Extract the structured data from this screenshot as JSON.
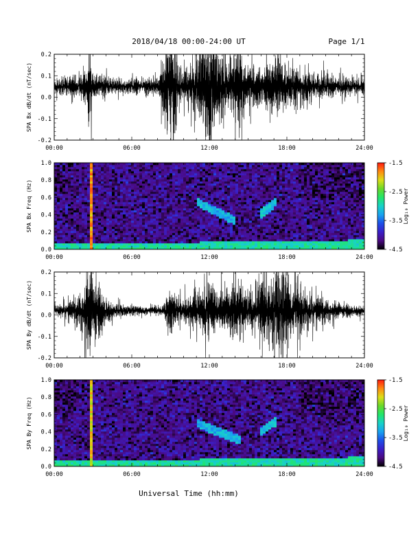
{
  "header": {
    "title": "2018/04/18   00:00-24:00 UT",
    "page": "Page 1/1"
  },
  "colors": {
    "waveform": "#000000",
    "colormap": [
      "#000000",
      "#4b0a82",
      "#3a1fc8",
      "#1d4fe8",
      "#19a2f0",
      "#18d2c8",
      "#22e66a",
      "#6ad82a",
      "#dcde18",
      "#ff8a10",
      "#ff1a10"
    ]
  },
  "chart_data": [
    {
      "type": "line",
      "name": "bx-waveform",
      "ylabel": "SPA Bx dB/dt (nT/sec)",
      "xlabel": "",
      "xlim": [
        0,
        24
      ],
      "ylim": [
        -0.2,
        0.2
      ],
      "xticks": [
        "00:00",
        "06:00",
        "12:00",
        "18:00",
        "24:00"
      ],
      "yticks": [
        "-0.2",
        "-0.1",
        "0.0",
        "0.1",
        "0.2"
      ],
      "baseline": 0.05,
      "envelope": [
        {
          "hour": 0.0,
          "amp": 0.03
        },
        {
          "hour": 1.5,
          "amp": 0.04
        },
        {
          "hour": 2.5,
          "amp": 0.06
        },
        {
          "hour": 2.75,
          "amp": 0.2
        },
        {
          "hour": 3.0,
          "amp": 0.05
        },
        {
          "hour": 5.0,
          "amp": 0.03
        },
        {
          "hour": 8.0,
          "amp": 0.03
        },
        {
          "hour": 8.8,
          "amp": 0.2
        },
        {
          "hour": 9.2,
          "amp": 0.3
        },
        {
          "hour": 9.6,
          "amp": 0.08
        },
        {
          "hour": 10.5,
          "amp": 0.07
        },
        {
          "hour": 11.3,
          "amp": 0.16
        },
        {
          "hour": 12.0,
          "amp": 0.25
        },
        {
          "hour": 12.5,
          "amp": 0.16
        },
        {
          "hour": 13.5,
          "amp": 0.12
        },
        {
          "hour": 14.2,
          "amp": 0.17
        },
        {
          "hour": 15.0,
          "amp": 0.08
        },
        {
          "hour": 16.0,
          "amp": 0.09
        },
        {
          "hour": 17.2,
          "amp": 0.12
        },
        {
          "hour": 18.0,
          "amp": 0.09
        },
        {
          "hour": 20.0,
          "amp": 0.06
        },
        {
          "hour": 22.0,
          "amp": 0.04
        },
        {
          "hour": 24.0,
          "amp": 0.03
        }
      ]
    },
    {
      "type": "heatmap",
      "name": "bx-spectrogram",
      "ylabel": "SPA Bx Freq (Hz)",
      "xlabel": "",
      "xlim": [
        0,
        24
      ],
      "ylim": [
        0.0,
        1.0
      ],
      "xticks": [
        "00:00",
        "06:00",
        "12:00",
        "18:00",
        "24:00"
      ],
      "yticks": [
        "0.0",
        "0.2",
        "0.4",
        "0.6",
        "0.8",
        "1.0"
      ],
      "colorbar": {
        "label": "Log₁₀ Power",
        "range": [
          -4.5,
          -1.5
        ],
        "ticks": [
          "-1.5",
          "-2.5",
          "-3.5",
          "-4.5"
        ]
      },
      "features": [
        {
          "hour": 2.8,
          "freq_from": 0.0,
          "freq_to": 1.0,
          "level": -1.6
        },
        {
          "from_hour": 11.0,
          "to_hour": 14.0,
          "freq_from": 0.55,
          "freq_to": 0.33,
          "level": -3.0
        },
        {
          "from_hour": 15.9,
          "to_hour": 17.2,
          "freq_from": 0.4,
          "freq_to": 0.55,
          "level": -2.9
        },
        {
          "from_hour": 0.0,
          "to_hour": 24.0,
          "freq_from": 0.0,
          "freq_to": 0.05,
          "level": -2.7
        }
      ]
    },
    {
      "type": "line",
      "name": "by-waveform",
      "ylabel": "SPA By dB/dt (nT/sec)",
      "xlabel": "",
      "xlim": [
        0,
        24
      ],
      "ylim": [
        -0.2,
        0.2
      ],
      "xticks": [
        "00:00",
        "06:00",
        "12:00",
        "18:00",
        "24:00"
      ],
      "yticks": [
        "-0.2",
        "-0.1",
        "0.0",
        "0.1",
        "0.2"
      ],
      "baseline": 0.02,
      "envelope": [
        {
          "hour": 0.0,
          "amp": 0.02
        },
        {
          "hour": 1.5,
          "amp": 0.04
        },
        {
          "hour": 2.0,
          "amp": 0.07
        },
        {
          "hour": 2.8,
          "amp": 0.18
        },
        {
          "hour": 3.5,
          "amp": 0.1
        },
        {
          "hour": 4.5,
          "amp": 0.03
        },
        {
          "hour": 6.0,
          "amp": 0.02
        },
        {
          "hour": 8.5,
          "amp": 0.02
        },
        {
          "hour": 9.0,
          "amp": 0.1
        },
        {
          "hour": 9.5,
          "amp": 0.05
        },
        {
          "hour": 11.0,
          "amp": 0.07
        },
        {
          "hour": 12.0,
          "amp": 0.12
        },
        {
          "hour": 13.0,
          "amp": 0.08
        },
        {
          "hour": 14.5,
          "amp": 0.13
        },
        {
          "hour": 15.0,
          "amp": 0.06
        },
        {
          "hour": 16.0,
          "amp": 0.13
        },
        {
          "hour": 17.5,
          "amp": 0.2
        },
        {
          "hour": 18.5,
          "amp": 0.12
        },
        {
          "hour": 20.0,
          "amp": 0.06
        },
        {
          "hour": 22.0,
          "amp": 0.03
        },
        {
          "hour": 24.0,
          "amp": 0.02
        }
      ]
    },
    {
      "type": "heatmap",
      "name": "by-spectrogram",
      "ylabel": "SPA By Freq (Hz)",
      "xlabel": "",
      "xlim": [
        0,
        24
      ],
      "ylim": [
        0.0,
        1.0
      ],
      "xticks": [
        "00:00",
        "06:00",
        "12:00",
        "18:00",
        "24:00"
      ],
      "yticks": [
        "0.0",
        "0.2",
        "0.4",
        "0.6",
        "0.8",
        "1.0"
      ],
      "colorbar": {
        "label": "Log₁₀ Power",
        "range": [
          -4.5,
          -1.5
        ],
        "ticks": [
          "-1.5",
          "-2.5",
          "-3.5",
          "-4.5"
        ]
      },
      "features": [
        {
          "hour": 2.8,
          "freq_from": 0.0,
          "freq_to": 1.0,
          "level": -1.8
        },
        {
          "from_hour": 11.0,
          "to_hour": 14.5,
          "freq_from": 0.5,
          "freq_to": 0.3,
          "level": -3.0
        },
        {
          "from_hour": 15.9,
          "to_hour": 17.2,
          "freq_from": 0.4,
          "freq_to": 0.52,
          "level": -2.9
        },
        {
          "from_hour": 0.0,
          "to_hour": 24.0,
          "freq_from": 0.0,
          "freq_to": 0.05,
          "level": -2.7
        }
      ]
    }
  ],
  "xaxis_label": "Universal Time (hh:mm)"
}
